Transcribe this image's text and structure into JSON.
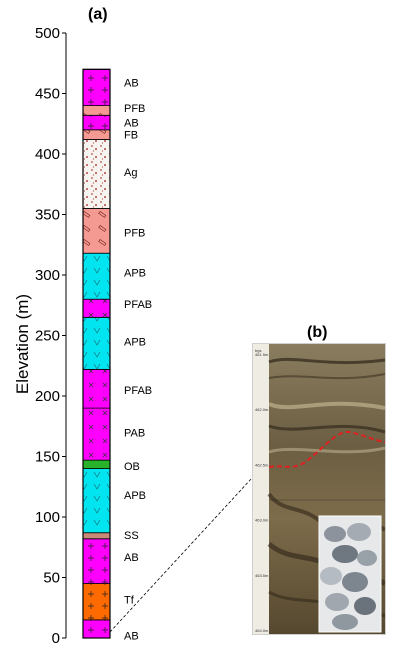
{
  "panel_a_label": "(a)",
  "panel_b_label": "(b)",
  "y_axis_label": "Elevation (m)",
  "y_axis_ticks": [
    0,
    50,
    100,
    150,
    200,
    250,
    300,
    350,
    400,
    450,
    500
  ],
  "y_axis_range": [
    0,
    500
  ],
  "colors": {
    "AB": "#ff00ff",
    "PFB": "#f49a93",
    "FB": "#f49a93",
    "Ag": "#f7f3f0",
    "APB": "#00e5f0",
    "PFAB": "#ff00ff",
    "PAB": "#ff00ff",
    "OB": "#29b32a",
    "SS": "#c98a78",
    "Tf": "#ff6a00",
    "core_marker": "#e02020"
  },
  "column_units": [
    {
      "label": "AB",
      "bottom": 0,
      "top": 15,
      "fill": "#ff00ff"
    },
    {
      "label": "Tf",
      "bottom": 15,
      "top": 45,
      "fill": "#ff6a00"
    },
    {
      "label": "AB",
      "bottom": 45,
      "top": 82,
      "fill": "#ff00ff"
    },
    {
      "label": "SS",
      "bottom": 82,
      "top": 87,
      "fill": "#c98a78"
    },
    {
      "label": "APB",
      "bottom": 87,
      "top": 140,
      "fill": "#00e5f0"
    },
    {
      "label": "OB",
      "bottom": 140,
      "top": 147,
      "fill": "#29b32a"
    },
    {
      "label": "PAB",
      "bottom": 147,
      "top": 190,
      "fill": "#ff00ff"
    },
    {
      "label": "PFAB",
      "bottom": 190,
      "top": 222,
      "fill": "#ff00ff"
    },
    {
      "label": "APB",
      "bottom": 222,
      "top": 265,
      "fill": "#00e5f0"
    },
    {
      "label": "PFAB",
      "bottom": 265,
      "top": 280,
      "fill": "#ff00ff"
    },
    {
      "label": "APB",
      "bottom": 280,
      "top": 318,
      "fill": "#00e5f0"
    },
    {
      "label": "PFB",
      "bottom": 318,
      "top": 355,
      "fill": "#f49a93"
    },
    {
      "label": "Ag",
      "bottom": 355,
      "top": 412,
      "fill": "#f7f3f0"
    },
    {
      "label": "FB",
      "bottom": 412,
      "top": 420,
      "fill": "#f49a93"
    },
    {
      "label": "AB",
      "bottom": 420,
      "top": 432,
      "fill": "#ff00ff"
    },
    {
      "label": "PFB",
      "bottom": 432,
      "top": 440,
      "fill": "#f49a93"
    },
    {
      "label": "AB",
      "bottom": 440,
      "top": 470,
      "fill": "#ff00ff"
    }
  ],
  "unit_labels": [
    {
      "text": "AB",
      "elev": 459
    },
    {
      "text": "PFB",
      "elev": 438
    },
    {
      "text": "AB",
      "elev": 426
    },
    {
      "text": "FB",
      "elev": 416
    },
    {
      "text": "Ag",
      "elev": 385
    },
    {
      "text": "PFB",
      "elev": 335
    },
    {
      "text": "APB",
      "elev": 302
    },
    {
      "text": "PFAB",
      "elev": 276
    },
    {
      "text": "APB",
      "elev": 245
    },
    {
      "text": "PFAB",
      "elev": 205
    },
    {
      "text": "PAB",
      "elev": 170
    },
    {
      "text": "OB",
      "elev": 142
    },
    {
      "text": "APB",
      "elev": 118
    },
    {
      "text": "SS",
      "elev": 85
    },
    {
      "text": "AB",
      "elev": 67
    },
    {
      "text": "Tf",
      "elev": 32
    },
    {
      "text": "AB",
      "elev": 2
    }
  ],
  "core_photo_depths": [
    "461.5m",
    "462.0m",
    "462.5m",
    "463.0m",
    "463.5m",
    "464.0m"
  ],
  "core_photo_header": "bgs"
}
